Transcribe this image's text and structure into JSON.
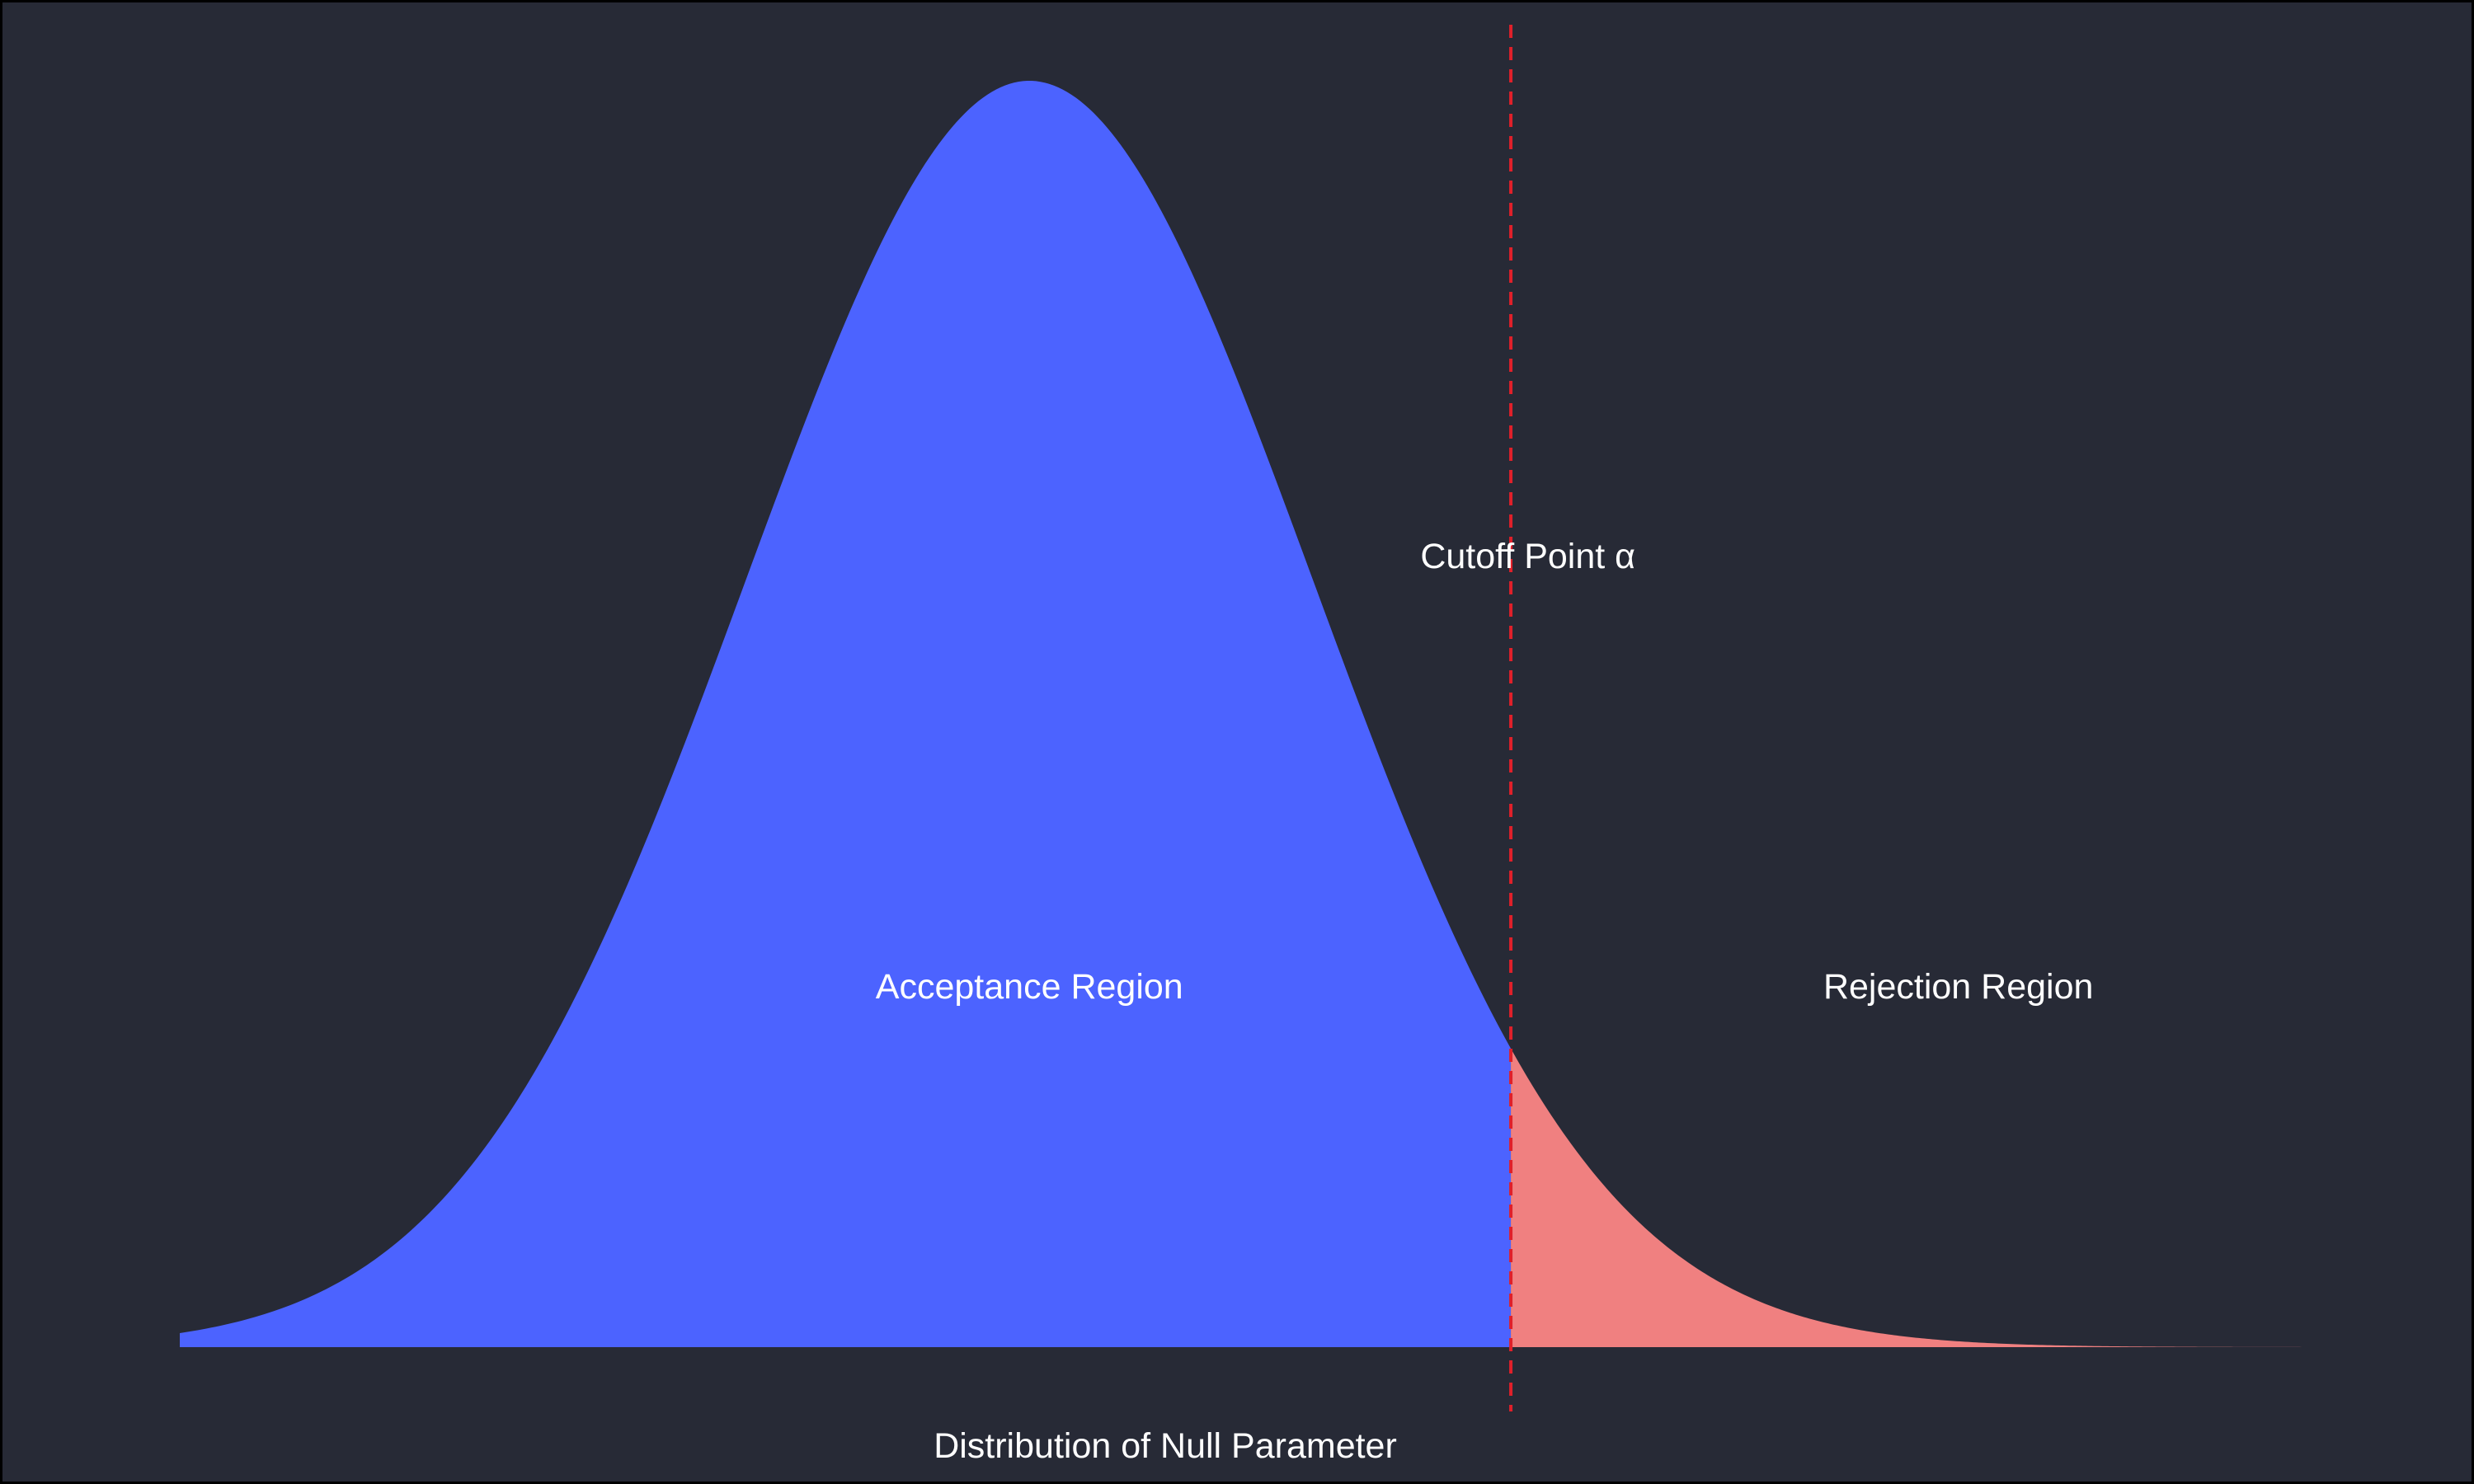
{
  "colors": {
    "background": "#272a36",
    "frame": "#000000",
    "acceptance_fill": "#4c63ff",
    "rejection_fill": "#f08080",
    "cutoff_line": "#e0202a",
    "text": "#ffffff"
  },
  "labels": {
    "acceptance": "Acceptance Region",
    "rejection": "Rejection Region",
    "cutoff": "Cutoff Point α",
    "xlabel": "Distribution of Null Parameter"
  },
  "chart_data": {
    "type": "area",
    "distribution": "normal",
    "mean": 0,
    "sd": 1,
    "xlim": [
      -3,
      4.6
    ],
    "cutoff": 1.7,
    "series": [
      {
        "region": "acceptance",
        "x_from": -3,
        "x_to": 1.7
      },
      {
        "region": "rejection",
        "x_from": 1.7,
        "x_to": 4.6
      }
    ],
    "xlabel": "Distribution of Null Parameter",
    "ylabel": "",
    "grid": false,
    "axes_visible": false,
    "annotations": [
      {
        "text": "Acceptance Region",
        "x": 0,
        "y_rel": 0.285
      },
      {
        "text": "Rejection Region",
        "x": 3.28,
        "y_rel": 0.285
      },
      {
        "text": "Cutoff Point α",
        "x": 1.76,
        "y_rel": 0.625
      }
    ]
  }
}
